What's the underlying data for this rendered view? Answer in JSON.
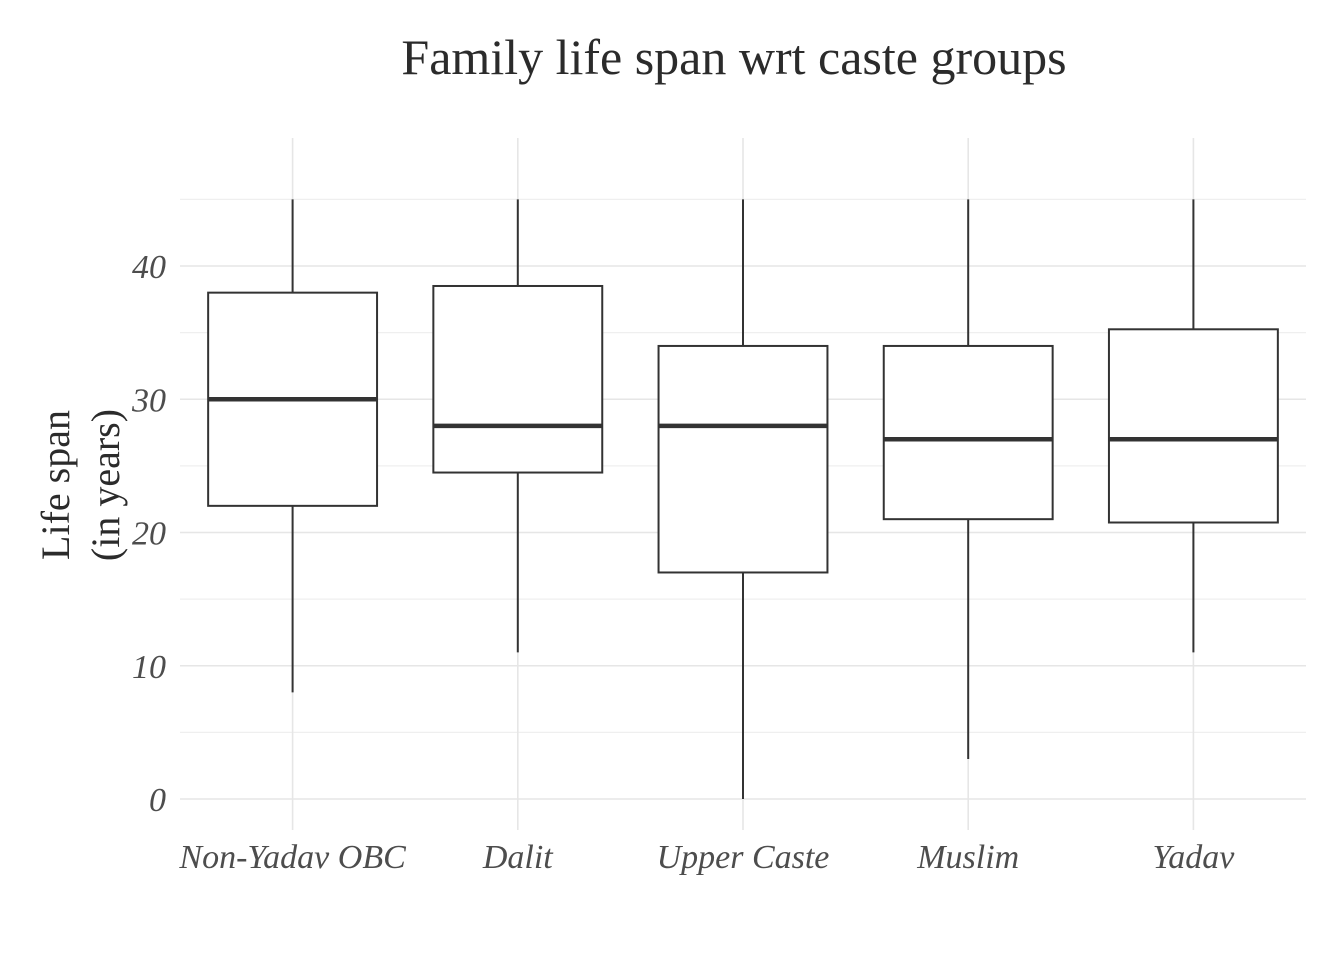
{
  "chart_data": {
    "type": "boxplot",
    "title": "Family life span wrt caste groups",
    "ylabel_lines": [
      "Life span",
      "(in years)"
    ],
    "xlabel": "",
    "ylim": [
      -2,
      50
    ],
    "yticks": [
      0,
      10,
      20,
      30,
      40
    ],
    "ytick_labels": [
      "0",
      "10",
      "20",
      "30",
      "40"
    ],
    "grid": true,
    "legend": "none",
    "categories": [
      "Non-Yadav OBC",
      "Dalit",
      "Upper Caste",
      "Muslim",
      "Yadav"
    ],
    "boxes": [
      {
        "category": "Non-Yadav OBC",
        "min": 8,
        "q1": 22,
        "median": 30,
        "q3": 38,
        "max": 45
      },
      {
        "category": "Dalit",
        "min": 11,
        "q1": 24.5,
        "median": 28,
        "q3": 38.5,
        "max": 45
      },
      {
        "category": "Upper Caste",
        "min": 0,
        "q1": 17,
        "median": 28,
        "q3": 34,
        "max": 45
      },
      {
        "category": "Muslim",
        "min": 3,
        "q1": 21,
        "median": 27,
        "q3": 34,
        "max": 45
      },
      {
        "category": "Yadav",
        "min": 11,
        "q1": 20.75,
        "median": 27,
        "q3": 35.25,
        "max": 45
      }
    ]
  }
}
